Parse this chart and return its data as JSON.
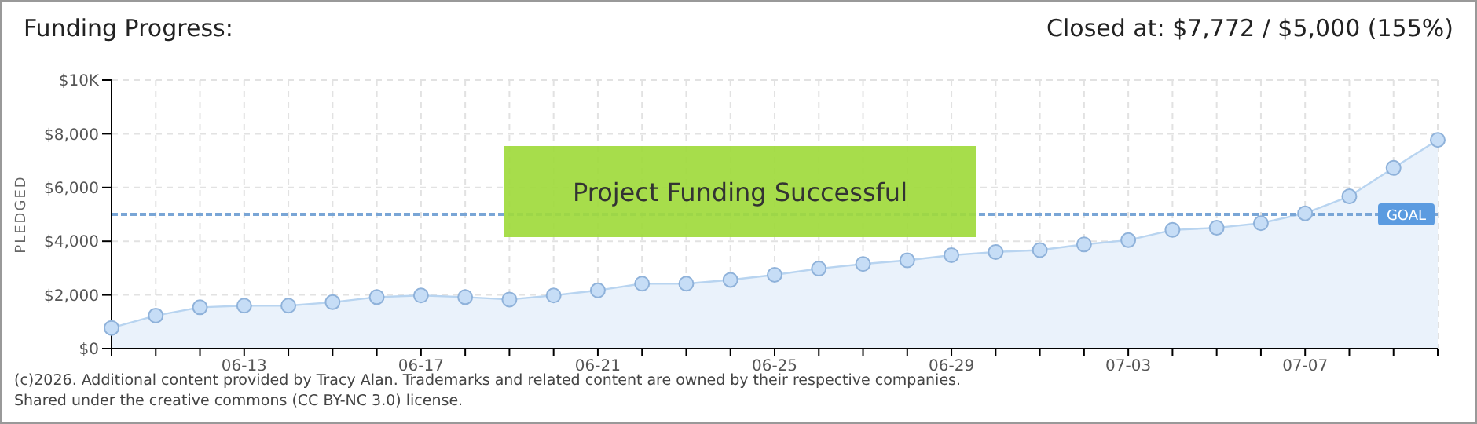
{
  "chart_data": {
    "type": "area",
    "title": "Funding Progress:",
    "subtitle": "Closed at: $7,772 / $5,000 (155%)",
    "ylabel": "PLEDGED",
    "categories": [
      null,
      null,
      null,
      "06-13",
      null,
      null,
      null,
      "06-17",
      null,
      null,
      null,
      "06-21",
      null,
      null,
      null,
      "06-25",
      null,
      null,
      null,
      "06-29",
      null,
      null,
      null,
      "07-03",
      null,
      null,
      null,
      "07-07",
      null,
      null,
      null
    ],
    "series": [
      {
        "color": "#b8d4f0",
        "values": [
          770,
          1230,
          1540,
          1600,
          1600,
          1730,
          1920,
          1980,
          1920,
          1830,
          1980,
          2170,
          2420,
          2420,
          2560,
          2750,
          2980,
          3150,
          3290,
          3480,
          3600,
          3670,
          3880,
          4040,
          4420,
          4500,
          4670,
          5040,
          5670,
          6730,
          7772
        ]
      }
    ],
    "ylim": [
      0,
      10000
    ],
    "yticks": [
      {
        "value": 0,
        "label": "$0"
      },
      {
        "value": 2000,
        "label": "$2,000"
      },
      {
        "value": 4000,
        "label": "$4,000"
      },
      {
        "value": 6000,
        "label": "$6,000"
      },
      {
        "value": 8000,
        "label": "$8,000"
      },
      {
        "value": 10000,
        "label": "$10K"
      }
    ],
    "ref_lines": [
      {
        "axis": "y",
        "value": 5000,
        "label": "GOAL",
        "color": "#7aa6d6",
        "line_style": "dashed"
      }
    ],
    "annotations": [
      "Project Funding Successful",
      "(c)2026. Additional content provided by Tracy Alan. Trademarks and related content are owned by their respective companies.",
      "Shared under the creative commons (CC BY-NC 3.0) license."
    ],
    "grid": true,
    "legend": false,
    "marker": "circle",
    "line_style": "solid"
  }
}
